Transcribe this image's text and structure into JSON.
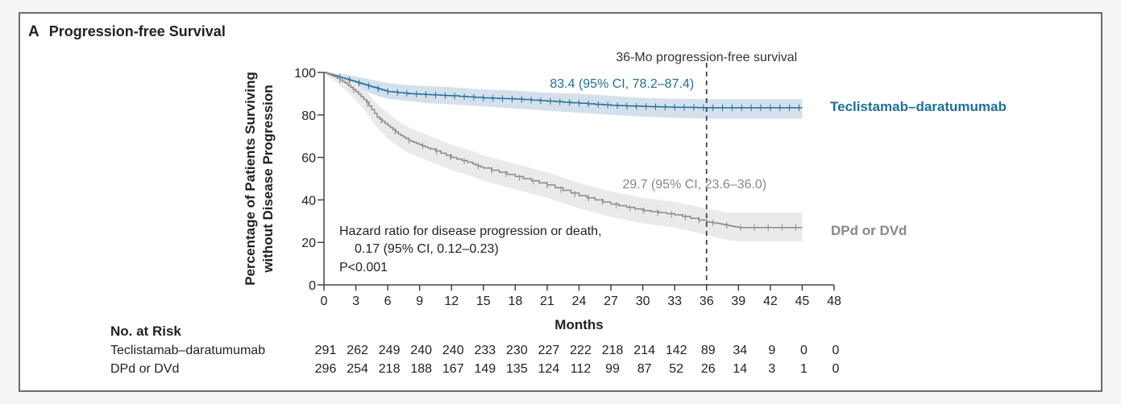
{
  "panel": {
    "letter": "A",
    "title": "Progression-free Survival"
  },
  "chart_data": {
    "type": "line",
    "title": "Progression-free Survival",
    "xlabel": "Months",
    "ylabel": [
      "Percentage of Patients Surviving",
      "without Disease Progression"
    ],
    "xlim": [
      0,
      48
    ],
    "ylim": [
      0,
      100
    ],
    "xticks": [
      0,
      3,
      6,
      9,
      12,
      15,
      18,
      21,
      24,
      27,
      30,
      33,
      36,
      39,
      42,
      45,
      48
    ],
    "yticks": [
      0,
      20,
      40,
      60,
      80,
      100
    ],
    "grid": false,
    "legend": "inline-right",
    "reference_line": {
      "x": 36,
      "label": "36-Mo progression-free survival",
      "style": "dashed"
    },
    "series": [
      {
        "name": "Teclistamab–daratumumab",
        "color": "#1f6f99",
        "band_color": "#cfdde9",
        "annotation": "83.4 (95% CI, 78.2–87.4)",
        "x": [
          0,
          1,
          2,
          3,
          4,
          5,
          6,
          8,
          10,
          12,
          15,
          18,
          21,
          24,
          27,
          30,
          33,
          36,
          39,
          42,
          45
        ],
        "y": [
          100,
          98.5,
          97,
          95.5,
          94,
          92.5,
          91,
          90,
          89.5,
          89,
          88,
          87.5,
          86.5,
          85.5,
          84.5,
          84,
          83.6,
          83.4,
          83.4,
          83.4,
          83.4
        ],
        "lower": [
          100,
          97,
          95,
          93,
          91,
          89,
          87.5,
          86.5,
          85.5,
          85,
          84,
          83,
          82,
          81,
          80,
          79.2,
          78.7,
          78.2,
          78.2,
          78.2,
          78.2
        ],
        "upper": [
          100,
          99.5,
          99,
          98,
          97,
          96,
          95,
          94,
          93.5,
          93,
          92,
          91.5,
          90.5,
          90,
          89,
          88,
          87.6,
          87.4,
          87.4,
          87.4,
          87.4
        ]
      },
      {
        "name": "DPd or DVd",
        "color": "#8a8a8a",
        "band_color": "#e7e8ea",
        "annotation": "29.7 (95% CI, 23.6–36.0)",
        "x": [
          0,
          1,
          2,
          3,
          4,
          5,
          6,
          7,
          8,
          9,
          10,
          12,
          14,
          15,
          18,
          21,
          24,
          27,
          30,
          33,
          36,
          37,
          38,
          39,
          42,
          45
        ],
        "y": [
          100,
          98,
          95,
          91,
          86,
          79,
          75,
          71,
          68,
          66,
          64,
          60,
          57,
          55,
          51,
          47,
          42,
          38,
          35,
          33,
          29.7,
          29,
          28,
          27,
          27,
          27
        ],
        "lower": [
          100,
          96,
          92,
          87,
          81,
          74,
          69,
          65,
          62,
          60,
          58,
          54,
          51,
          49,
          45,
          41,
          36,
          32,
          29,
          27,
          23.6,
          22,
          21,
          20.5,
          20.5,
          20.5
        ],
        "upper": [
          100,
          99.5,
          98,
          95,
          91,
          85,
          81,
          77,
          74,
          72,
          70,
          66,
          63,
          61,
          57,
          53,
          48,
          44,
          41,
          39,
          36.0,
          35,
          34,
          34,
          34,
          34
        ]
      }
    ],
    "annotations": [
      "Hazard ratio for disease progression or death,",
      "0.17 (95% CI, 0.12–0.23)",
      "P<0.001"
    ],
    "at_risk": {
      "header": "No. at Risk",
      "rows": [
        {
          "label": "Teclistamab–daratumumab",
          "values": [
            291,
            262,
            249,
            240,
            240,
            233,
            230,
            227,
            222,
            218,
            214,
            142,
            89,
            34,
            9,
            0,
            0
          ]
        },
        {
          "label": "DPd or DVd",
          "values": [
            296,
            254,
            218,
            188,
            167,
            149,
            135,
            124,
            112,
            99,
            87,
            52,
            26,
            14,
            3,
            1,
            0
          ]
        }
      ]
    }
  }
}
